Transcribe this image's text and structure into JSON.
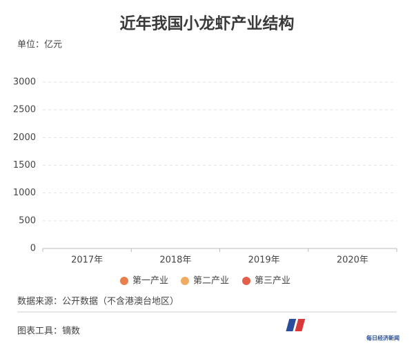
{
  "chart_data": {
    "type": "bar",
    "title": "近年我国小龙虾产业结构",
    "unit": "单位：亿元",
    "categories": [
      "2017年",
      "2018年",
      "2019年",
      "2020年"
    ],
    "series": [
      {
        "name": "第一产业",
        "color": "#e8804e",
        "values": [
          null,
          null,
          null,
          null
        ]
      },
      {
        "name": "第二产业",
        "color": "#f0aa62",
        "values": [
          null,
          null,
          null,
          null
        ]
      },
      {
        "name": "第三产业",
        "color": "#e5604a",
        "values": [
          null,
          null,
          null,
          null
        ]
      }
    ],
    "ylim": [
      0,
      3000
    ],
    "yticks": [
      0,
      500,
      1000,
      1500,
      2000,
      2500,
      3000
    ],
    "grid": true,
    "source": "数据来源：公开数据（不含港澳台地区）",
    "tool": "图表工具：镝数",
    "logo": "每日经济新闻"
  }
}
